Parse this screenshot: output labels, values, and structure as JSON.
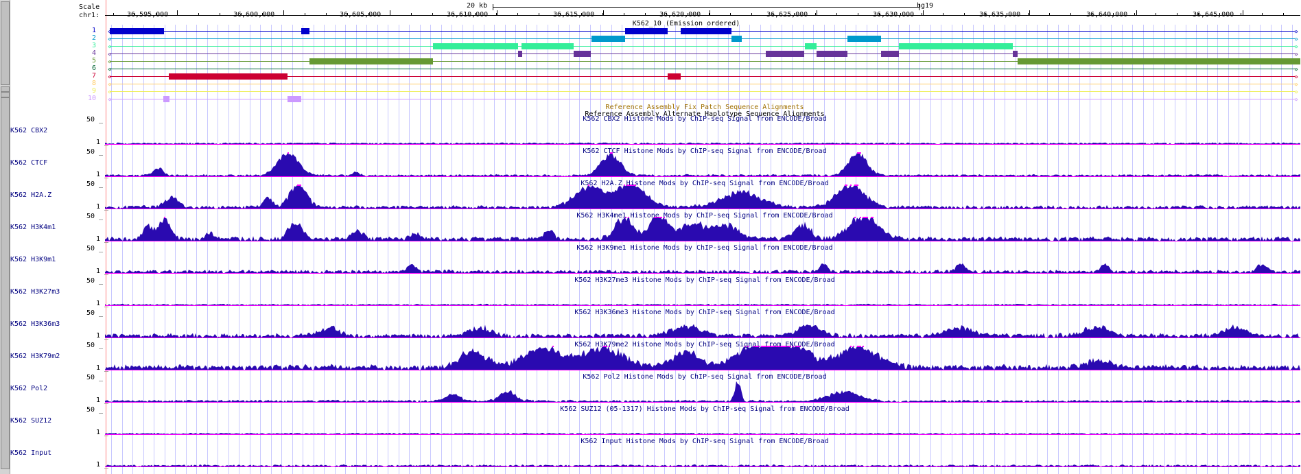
{
  "ruler": {
    "scale_label": "Scale",
    "chrom_label": "chr1:",
    "scale_bar_text": "20 kb",
    "assembly": "hg19",
    "positions": [
      "36,595,000",
      "36,600,000",
      "36,605,000",
      "36,610,000",
      "36,615,000",
      "36,620,000",
      "36,625,000",
      "36,630,000",
      "36,635,000",
      "36,640,000",
      "36,645,000"
    ]
  },
  "segmentation": {
    "title": "K562_10 (Emission ordered)",
    "rows": [
      {
        "label": "1",
        "color": "#0000cc"
      },
      {
        "label": "2",
        "color": "#0099cc"
      },
      {
        "label": "3",
        "color": "#33ee99"
      },
      {
        "label": "4",
        "color": "#663399"
      },
      {
        "label": "5",
        "color": "#669933"
      },
      {
        "label": "6",
        "color": "#006633"
      },
      {
        "label": "7",
        "color": "#cc0033"
      },
      {
        "label": "8",
        "color": "#ffcc66"
      },
      {
        "label": "9",
        "color": "#eeee55"
      },
      {
        "label": "10",
        "color": "#cc99ff"
      }
    ]
  },
  "extra_titles": {
    "fix_patch": "Reference Assembly Fix Patch Sequence Alignments",
    "alt_haplotype": "Reference Assembly Alternate Haplotype Sequence Alignments"
  },
  "signal_tracks": [
    {
      "label": "K562 CBX2",
      "title": "K562 CBX2 Histone Mods by ChIP-seq Signal from ENCODE/Broad",
      "max": "50",
      "min": "1"
    },
    {
      "label": "K562 CTCF",
      "title": "K562 CTCF Histone Mods by ChIP-seq Signal from ENCODE/Broad",
      "max": "50",
      "min": "1"
    },
    {
      "label": "K562 H2A.Z",
      "title": "K562 H2A.Z Histone Mods by ChIP-seq Signal from ENCODE/Broad",
      "max": "50",
      "min": "1"
    },
    {
      "label": "K562 H3K4m1",
      "title": "K562 H3K4me1 Histone Mods by ChIP-seq Signal from ENCODE/Broad",
      "max": "50",
      "min": "1"
    },
    {
      "label": "K562 H3K9m1",
      "title": "K562 H3K9me1 Histone Mods by ChIP-seq Signal from ENCODE/Broad",
      "max": "50",
      "min": "1"
    },
    {
      "label": "K562 H3K27m3",
      "title": "K562 H3K27me3 Histone Mods by ChIP-seq Signal from ENCODE/Broad",
      "max": "50",
      "min": "1"
    },
    {
      "label": "K562 H3K36m3",
      "title": "K562 H3K36me3 Histone Mods by ChIP-seq Signal from ENCODE/Broad",
      "max": "50",
      "min": "1"
    },
    {
      "label": "K562 H3K79m2",
      "title": "K562 H3K79me2 Histone Mods by ChIP-seq Signal from ENCODE/Broad",
      "max": "50",
      "min": "1"
    },
    {
      "label": "K562 Pol2",
      "title": "K562 Pol2 Histone Mods by ChIP-seq Signal from ENCODE/Broad",
      "max": "50",
      "min": "1"
    },
    {
      "label": "K562 SUZ12",
      "title": "K562 SUZ12 (05-1317) Histone Mods by ChIP-seq Signal from ENCODE/Broad",
      "max": "50",
      "min": "1"
    },
    {
      "label": "K562 Input",
      "title": "K562 Input Histone Mods by ChIP-seq Signal from ENCODE/Broad",
      "max": "",
      "min": "1"
    }
  ],
  "colors": {
    "signal_fill": "#2a0ab0",
    "clip_mark": "#ff00ff",
    "grid": "#c8c8ff",
    "label": "#000080",
    "cursor": "#ff8080"
  }
}
